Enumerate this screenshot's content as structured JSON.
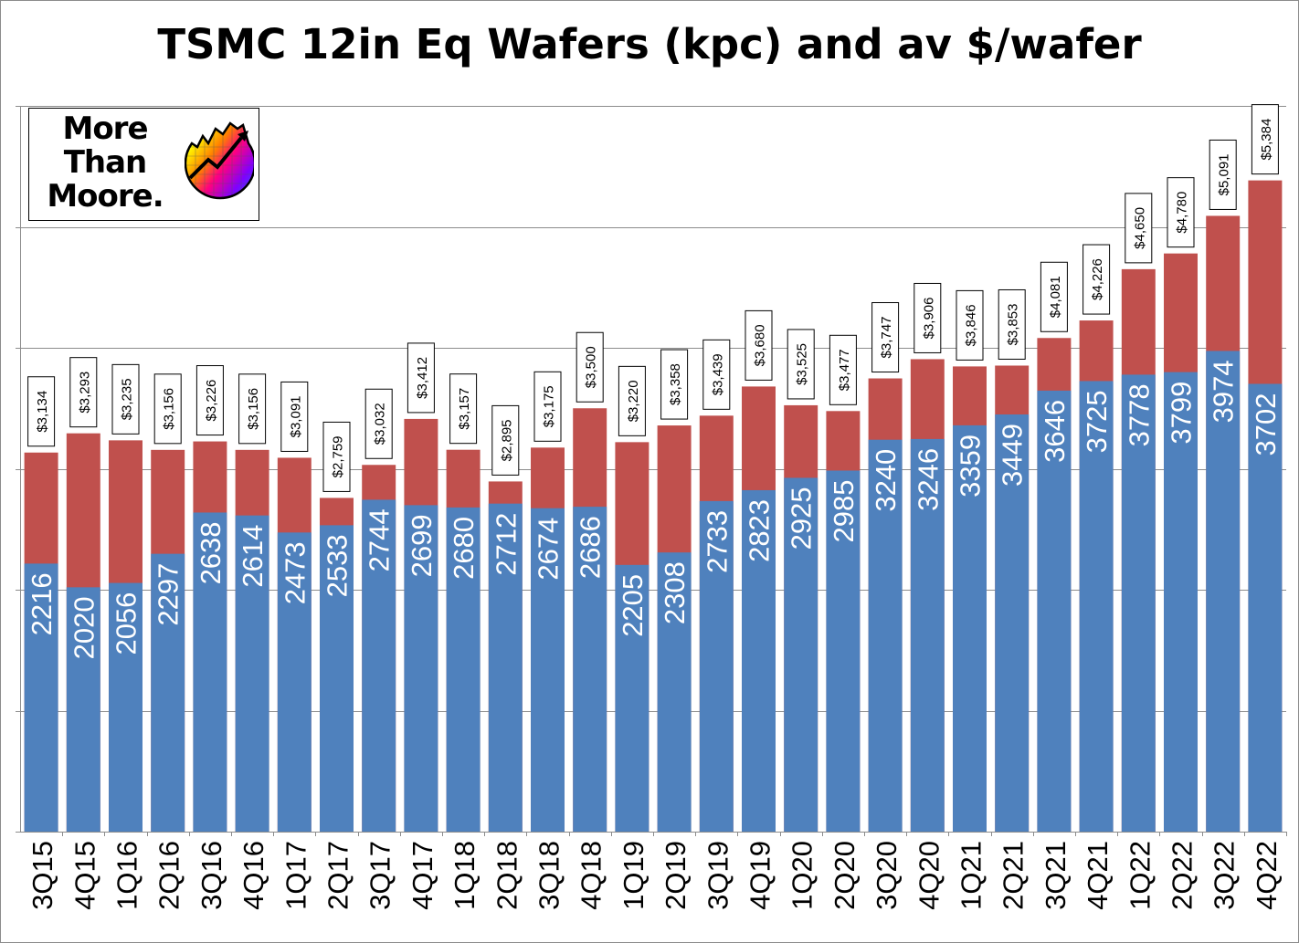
{
  "title": "TSMC 12in Eq Wafers (kpc) and av $/wafer",
  "logo": {
    "line1": "More",
    "line2": "Than",
    "line3": "Moore."
  },
  "colors": {
    "wafers_bar": "#4f81bd",
    "price_bar": "#c0504d",
    "gridline": "#8c8c8c",
    "wafer_label": "#ffffff"
  },
  "chart_data": {
    "type": "bar",
    "title": "TSMC 12in Eq Wafers (kpc) and av $/wafer",
    "categories": [
      "3Q15",
      "4Q15",
      "1Q16",
      "2Q16",
      "3Q16",
      "4Q16",
      "1Q17",
      "2Q17",
      "3Q17",
      "4Q17",
      "1Q18",
      "2Q18",
      "3Q18",
      "4Q18",
      "1Q19",
      "2Q19",
      "3Q19",
      "4Q19",
      "1Q20",
      "2Q20",
      "3Q20",
      "4Q20",
      "1Q21",
      "2Q21",
      "3Q21",
      "4Q21",
      "1Q22",
      "2Q22",
      "3Q22",
      "4Q22"
    ],
    "series": [
      {
        "name": "12in Eq Wafers (kpc)",
        "values": [
          2216,
          2020,
          2056,
          2297,
          2638,
          2614,
          2473,
          2533,
          2744,
          2699,
          2680,
          2712,
          2674,
          2686,
          2205,
          2308,
          2733,
          2823,
          2925,
          2985,
          3240,
          3246,
          3359,
          3449,
          3646,
          3725,
          3778,
          3799,
          3974,
          3702
        ]
      },
      {
        "name": "av $/wafer",
        "values": [
          3134,
          3293,
          3235,
          3156,
          3226,
          3156,
          3091,
          2759,
          3032,
          3412,
          3157,
          2895,
          3175,
          3500,
          3220,
          3358,
          3439,
          3680,
          3525,
          3477,
          3747,
          3906,
          3846,
          3853,
          4081,
          4226,
          4650,
          4780,
          5091,
          5384
        ],
        "labels": [
          "$3,134",
          "$3,293",
          "$3,235",
          "$3,156",
          "$3,226",
          "$3,156",
          "$3,091",
          "$2,759",
          "$3,032",
          "$3,412",
          "$3,157",
          "$2,895",
          "$3,175",
          "$3,500",
          "$3,220",
          "$3,358",
          "$3,439",
          "$3,680",
          "$3,525",
          "$3,477",
          "$3,747",
          "$3,906",
          "$3,846",
          "$3,853",
          "$4,081",
          "$4,226",
          "$4,650",
          "$4,780",
          "$5,091",
          "$5,384"
        ]
      }
    ],
    "ylim": [
      0,
      6000
    ],
    "grid": true,
    "overlapping_bars": true,
    "xlabel": "",
    "ylabel": ""
  }
}
